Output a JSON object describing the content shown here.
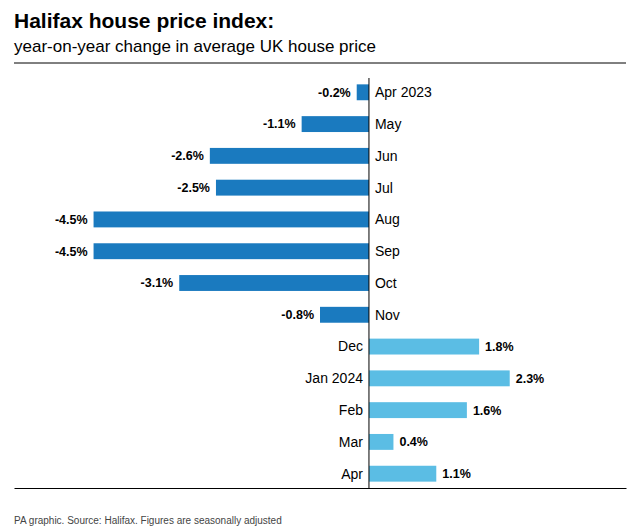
{
  "chart_data": {
    "type": "bar",
    "orientation": "horizontal",
    "title": "Halifax house price index:",
    "subtitle": "year-on-year change in average UK house price",
    "annotations": [
      "PA graphic. Source: Halifax. Figures are seasonally adjusted"
    ],
    "categories": [
      "Apr 2023",
      "May",
      "Jun",
      "Jul",
      "Aug",
      "Sep",
      "Oct",
      "Nov",
      "Dec",
      "Jan 2024",
      "Feb",
      "Mar",
      "Apr"
    ],
    "values": [
      -0.2,
      -1.1,
      -2.6,
      -2.5,
      -4.5,
      -4.5,
      -3.1,
      -0.8,
      1.8,
      2.3,
      1.6,
      0.4,
      1.1
    ],
    "value_labels": [
      "-0.2%",
      "-1.1%",
      "-2.6%",
      "-2.5%",
      "-4.5%",
      "-4.5%",
      "-3.1%",
      "-0.8%",
      "1.8%",
      "2.3%",
      "1.6%",
      "0.4%",
      "1.1%"
    ],
    "data_labels": true,
    "colors": [
      "#1a7abf",
      "#1a7abf",
      "#1a7abf",
      "#1a7abf",
      "#1a7abf",
      "#1a7abf",
      "#1a7abf",
      "#1a7abf",
      "#5bbde4",
      "#5bbde4",
      "#5bbde4",
      "#5bbde4",
      "#5bbde4"
    ],
    "xlim": [
      -5.8,
      4.2
    ],
    "tick_labels": false,
    "grid": false
  }
}
